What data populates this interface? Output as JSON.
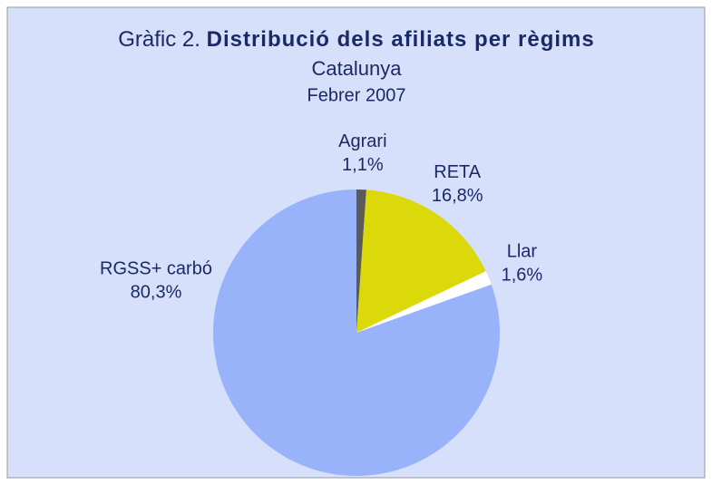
{
  "chart_data": {
    "type": "pie",
    "title_label": "Gràfic 2.",
    "title": "Distribució dels afiliats per règims",
    "subtitle": [
      "Catalunya",
      "Febrer 2007"
    ],
    "categories": [
      "Agrari",
      "RETA",
      "Llar",
      "RGSS+ carbó"
    ],
    "values": [
      1.1,
      16.8,
      1.6,
      80.3
    ],
    "value_labels": [
      "1,1%",
      "16,8%",
      "1,6%",
      "80,3%"
    ],
    "colors": [
      "#5a5a5a",
      "#dcd90a",
      "#ffffff",
      "#99b3fb"
    ]
  }
}
